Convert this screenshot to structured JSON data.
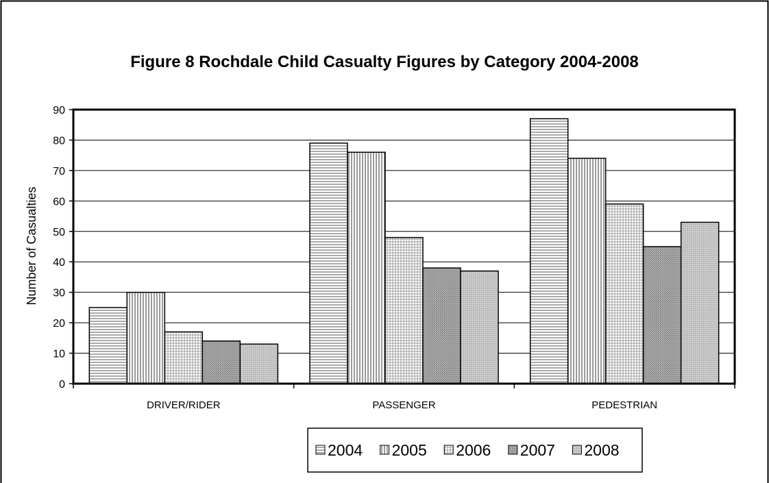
{
  "chart_data": {
    "type": "bar",
    "title": "Figure 8 Rochdale Child Casualty Figures by Category 2004-2008",
    "xlabel": "",
    "ylabel": "Number of Casualties",
    "ylim": [
      0,
      90
    ],
    "yticks": [
      0,
      10,
      20,
      30,
      40,
      50,
      60,
      70,
      80,
      90
    ],
    "grid": true,
    "legend_position": "bottom",
    "categories": [
      "DRIVER/RIDER",
      "PASSENGER",
      "PEDESTRIAN"
    ],
    "series": [
      {
        "name": "2004",
        "values": [
          25,
          79,
          87
        ],
        "pattern": "horizontal-lines"
      },
      {
        "name": "2005",
        "values": [
          30,
          76,
          74
        ],
        "pattern": "vertical-lines"
      },
      {
        "name": "2006",
        "values": [
          17,
          48,
          59
        ],
        "pattern": "grid"
      },
      {
        "name": "2007",
        "values": [
          14,
          38,
          45
        ],
        "pattern": "dots-dense"
      },
      {
        "name": "2008",
        "values": [
          13,
          37,
          53
        ],
        "pattern": "dots-light"
      }
    ]
  }
}
